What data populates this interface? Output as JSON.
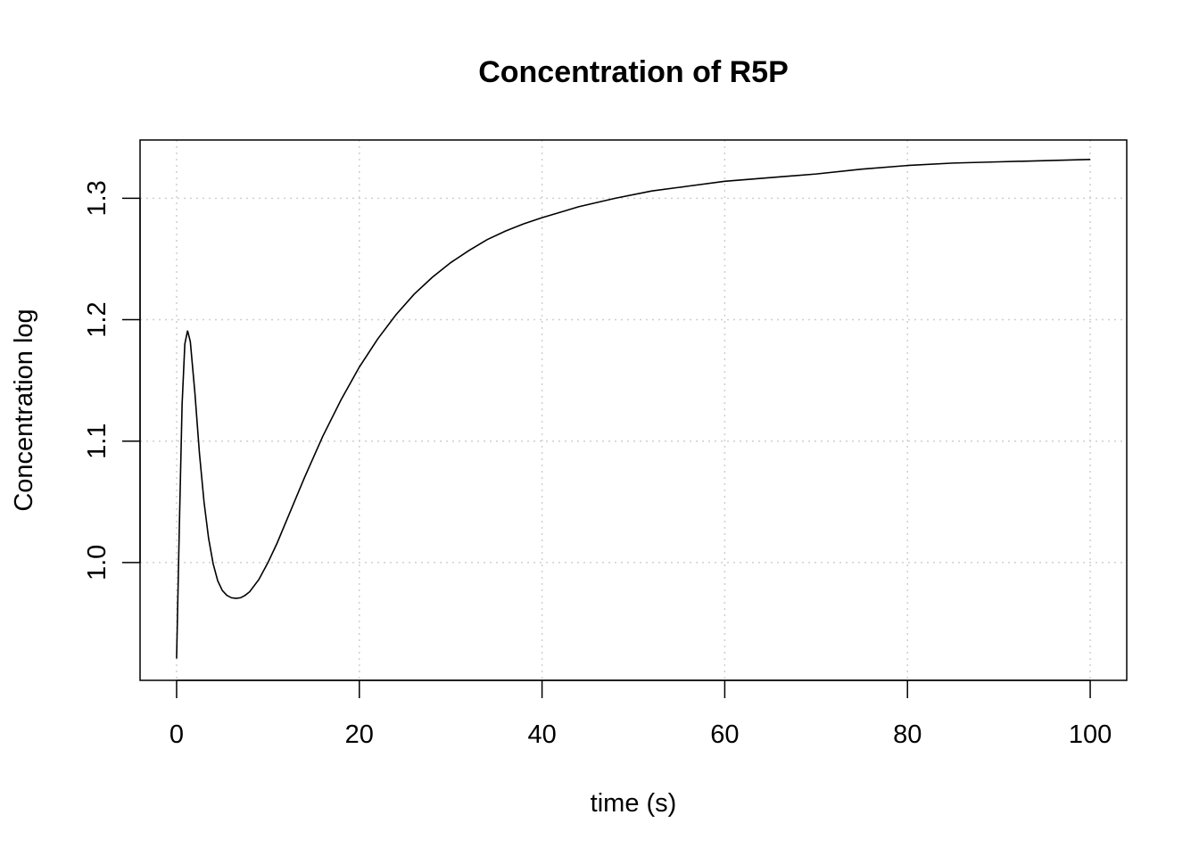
{
  "chart_data": {
    "type": "line",
    "title": "Concentration of R5P",
    "xlabel": "time (s)",
    "ylabel": "Concentration log",
    "xlim": [
      -4,
      104
    ],
    "ylim": [
      0.903,
      1.348
    ],
    "x_ticks": [
      0,
      20,
      40,
      60,
      80,
      100
    ],
    "x_tick_labels": [
      "0",
      "20",
      "40",
      "60",
      "80",
      "100"
    ],
    "y_ticks": [
      1.0,
      1.1,
      1.2,
      1.3
    ],
    "y_tick_labels": [
      "1.0",
      "1.1",
      "1.2",
      "1.3"
    ],
    "grid": true,
    "legend": "none",
    "line_color": "#000000",
    "grid_color": "#cfcfcf",
    "series": [
      {
        "x": [
          0,
          0.3,
          0.6,
          0.9,
          1.2,
          1.5,
          2,
          2.5,
          3,
          3.5,
          4,
          4.5,
          5,
          5.5,
          6,
          6.5,
          7,
          7.5,
          8,
          9,
          10,
          11,
          12,
          13,
          14,
          15,
          16,
          18,
          20,
          22,
          24,
          26,
          28,
          30,
          32,
          34,
          36,
          38,
          40,
          44,
          48,
          52,
          56,
          60,
          65,
          70,
          75,
          80,
          85,
          90,
          95,
          100
        ],
        "y": [
          0.921,
          1.03,
          1.13,
          1.18,
          1.191,
          1.182,
          1.14,
          1.09,
          1.05,
          1.02,
          0.999,
          0.985,
          0.977,
          0.973,
          0.971,
          0.9705,
          0.971,
          0.973,
          0.976,
          0.986,
          1.0,
          1.016,
          1.034,
          1.052,
          1.07,
          1.087,
          1.104,
          1.134,
          1.161,
          1.184,
          1.204,
          1.221,
          1.235,
          1.247,
          1.257,
          1.266,
          1.273,
          1.279,
          1.284,
          1.293,
          1.3,
          1.306,
          1.31,
          1.314,
          1.317,
          1.32,
          1.324,
          1.327,
          1.329,
          1.33,
          1.331,
          1.332
        ]
      }
    ]
  }
}
